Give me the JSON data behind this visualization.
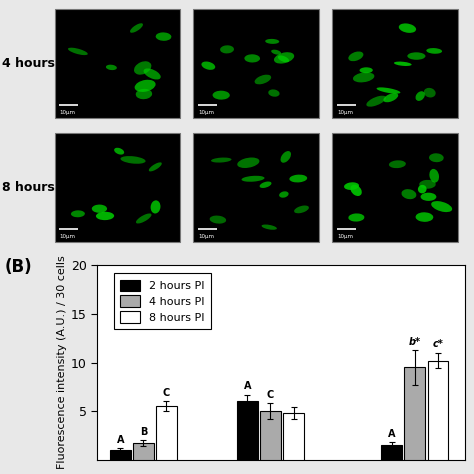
{
  "panel_label": "(B)",
  "ylabel": "Fluorescence intensity (A.U.) / 30 cells",
  "ylim": [
    0,
    20
  ],
  "yticks": [
    5,
    10,
    15,
    20
  ],
  "bar_labels": [
    "2 hours PI",
    "4 hours PI",
    "8 hours PI"
  ],
  "bar_colors": [
    "#000000",
    "#aaaaaa",
    "#ffffff"
  ],
  "bar_edgecolor": "#000000",
  "bar_width": 0.2,
  "group_centers": [
    1.0,
    2.1,
    3.35
  ],
  "values": [
    [
      1.0,
      1.7,
      5.5
    ],
    [
      6.0,
      5.0,
      4.8
    ],
    [
      1.5,
      9.5,
      10.2
    ]
  ],
  "errors": [
    [
      0.2,
      0.3,
      0.5
    ],
    [
      0.7,
      0.8,
      0.6
    ],
    [
      0.3,
      1.8,
      0.8
    ]
  ],
  "letter_annotations": [
    [
      "A",
      "B",
      "C"
    ],
    [
      "A",
      "C",
      ""
    ],
    [
      "A",
      "b*",
      "c*"
    ]
  ],
  "fig_bg": "#e8e8e8",
  "chart_bg": "#ffffff",
  "img_bg": "#c8c8c8",
  "legend_fontsize": 8,
  "tick_fontsize": 9,
  "ylabel_fontsize": 8,
  "img_row_labels": [
    "4 hours",
    "8 hours"
  ]
}
